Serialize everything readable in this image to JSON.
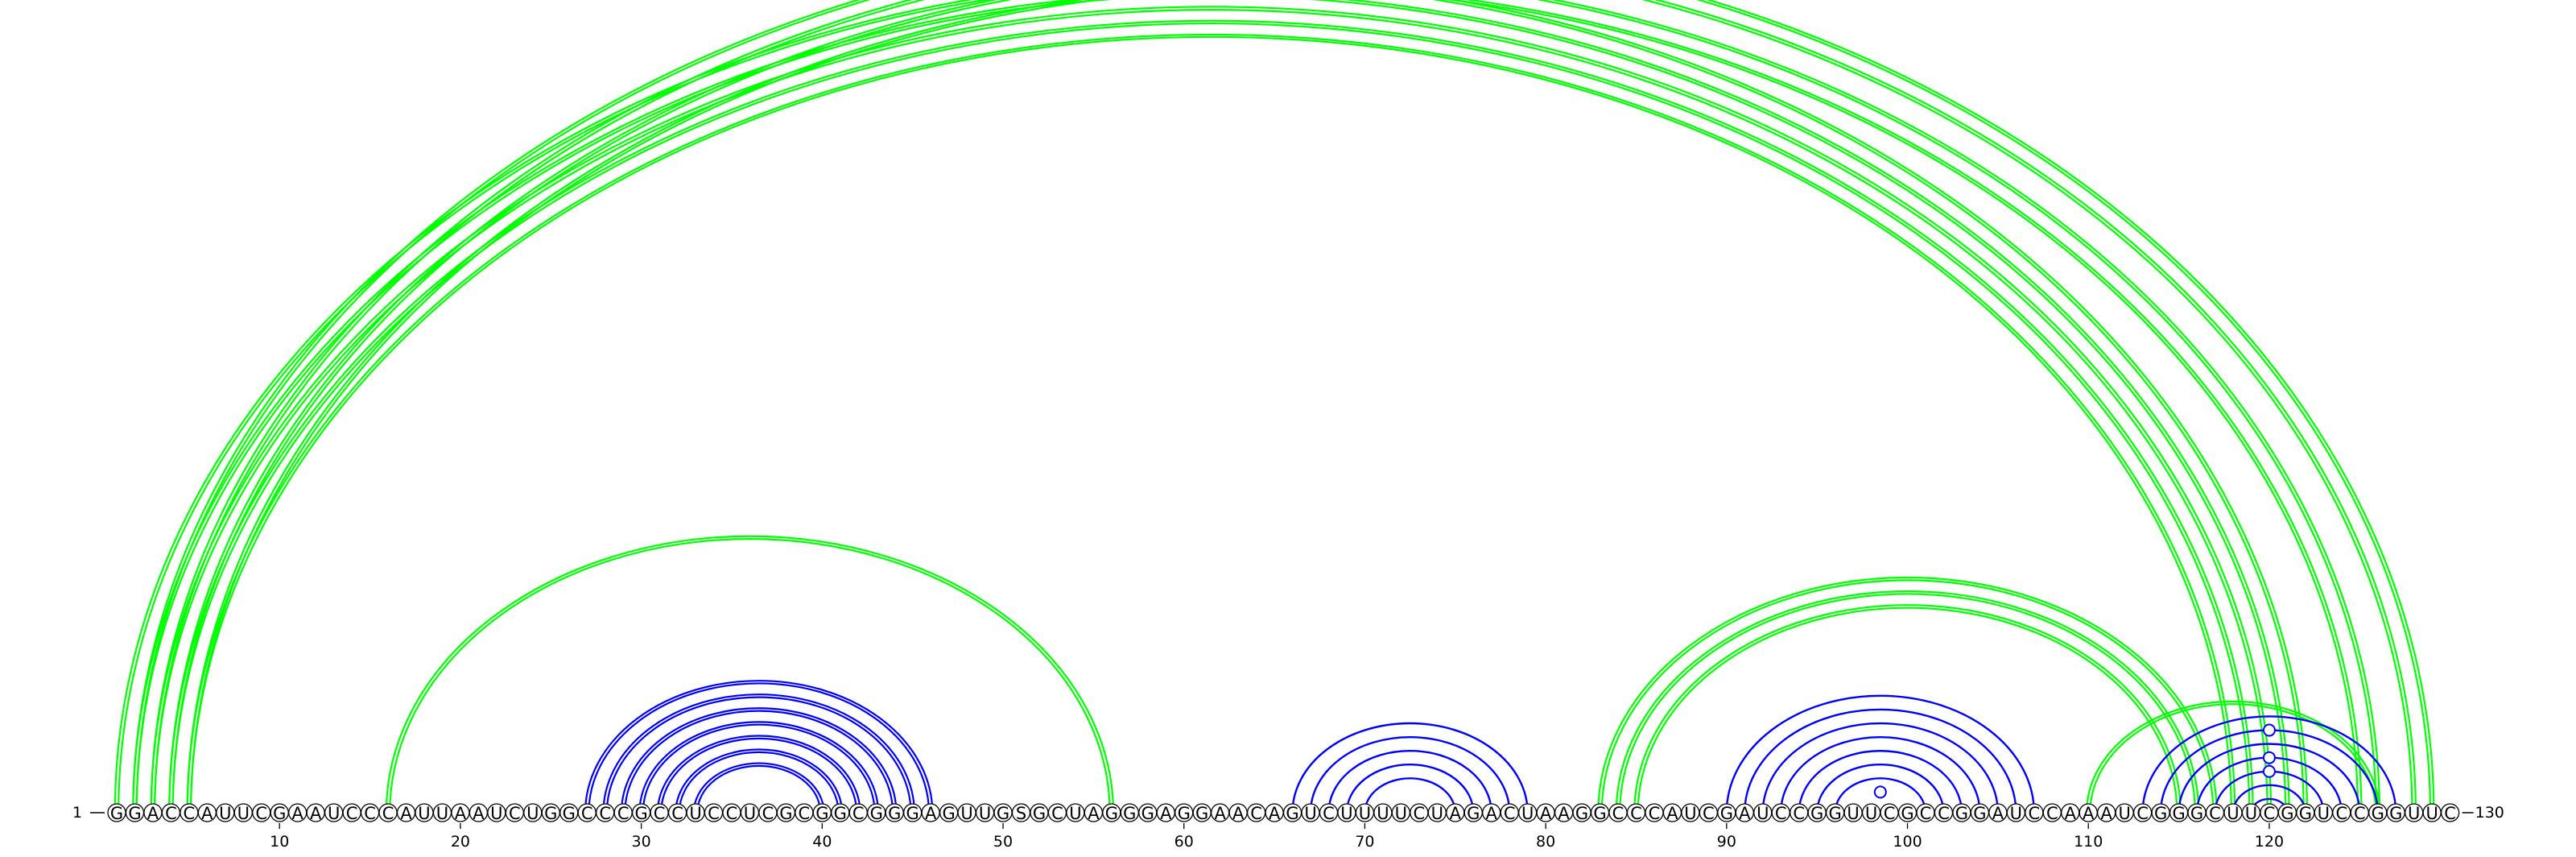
{
  "sequence": "GGACCAUUCGAAUCCCAUUAAUCUGGCCCGCCUCCUCGCGGCGGGAGUUGSGCUAGGGAGGAACAGUCUUUUCUAGACUAAGGCCCAUCGAUCCGGUUCGCCGGAUCCAAAUCGGGCUUCGGUCCGGUUC",
  "start_label": "1",
  "end_label": "130",
  "tick_labels": [
    "10",
    "20",
    "30",
    "40",
    "50",
    "60",
    "70",
    "80",
    "90",
    "100",
    "110",
    "120"
  ],
  "colors": {
    "nested_pairs": "#0000ff",
    "crossing_pairs": "#00ff00",
    "nucleotide_outline": "#000000"
  },
  "arcs": [
    {
      "i": 16,
      "j": 56,
      "group": "green",
      "lines": 2
    },
    {
      "i": 1,
      "j": 122,
      "group": "green",
      "lines": 2
    },
    {
      "i": 2,
      "j": 121,
      "group": "green",
      "lines": 2
    },
    {
      "i": 3,
      "j": 120,
      "group": "green",
      "lines": 2
    },
    {
      "i": 4,
      "j": 119,
      "group": "green",
      "lines": 2
    },
    {
      "i": 5,
      "j": 118,
      "group": "green",
      "lines": 2
    },
    {
      "i": 1,
      "j": 130,
      "group": "green",
      "lines": 2,
      "gu": true
    },
    {
      "i": 2,
      "j": 129,
      "group": "green",
      "lines": 2
    },
    {
      "i": 3,
      "j": 128,
      "group": "green",
      "lines": 2
    },
    {
      "i": 4,
      "j": 126,
      "group": "green",
      "lines": 2
    },
    {
      "i": 5,
      "j": 125,
      "group": "green",
      "lines": 2
    },
    {
      "i": 83,
      "j": 117,
      "group": "green",
      "lines": 2
    },
    {
      "i": 84,
      "j": 116,
      "group": "green",
      "lines": 2
    },
    {
      "i": 85,
      "j": 115,
      "group": "green",
      "lines": 2
    },
    {
      "i": 110,
      "j": 126,
      "group": "green",
      "lines": 2
    },
    {
      "i": 27,
      "j": 46,
      "group": "blue",
      "lines": 2
    },
    {
      "i": 28,
      "j": 45,
      "group": "blue",
      "lines": 2
    },
    {
      "i": 29,
      "j": 44,
      "group": "blue",
      "lines": 2
    },
    {
      "i": 30,
      "j": 43,
      "group": "blue",
      "lines": 2
    },
    {
      "i": 31,
      "j": 42,
      "group": "blue",
      "lines": 2
    },
    {
      "i": 32,
      "j": 41,
      "group": "blue",
      "lines": 2
    },
    {
      "i": 33,
      "j": 40,
      "group": "blue",
      "lines": 2
    },
    {
      "i": 66,
      "j": 79,
      "group": "blue",
      "lines": 1
    },
    {
      "i": 67,
      "j": 78,
      "group": "blue",
      "lines": 1
    },
    {
      "i": 68,
      "j": 77,
      "group": "blue",
      "lines": 1
    },
    {
      "i": 69,
      "j": 76,
      "group": "blue",
      "lines": 1
    },
    {
      "i": 70,
      "j": 75,
      "group": "blue",
      "lines": 1
    },
    {
      "i": 90,
      "j": 107,
      "group": "blue",
      "lines": 1
    },
    {
      "i": 91,
      "j": 106,
      "group": "blue",
      "lines": 1
    },
    {
      "i": 92,
      "j": 105,
      "group": "blue",
      "lines": 1
    },
    {
      "i": 93,
      "j": 104,
      "group": "blue",
      "lines": 1
    },
    {
      "i": 94,
      "j": 103,
      "group": "blue",
      "lines": 1
    },
    {
      "i": 95,
      "j": 102,
      "group": "blue",
      "lines": 1
    },
    {
      "i": 96,
      "j": 101,
      "group": "blue",
      "lines": 1
    },
    {
      "i": 97,
      "j": 100,
      "group": "blue",
      "lines": 1,
      "gu": true
    },
    {
      "i": 113,
      "j": 127,
      "group": "blue",
      "lines": 1
    },
    {
      "i": 114,
      "j": 126,
      "group": "blue",
      "lines": 1
    },
    {
      "i": 115,
      "j": 125,
      "group": "blue",
      "lines": 1
    },
    {
      "i": 116,
      "j": 124,
      "group": "blue",
      "lines": 1
    },
    {
      "i": 117,
      "j": 123,
      "group": "blue",
      "lines": 1
    },
    {
      "i": 118,
      "j": 122,
      "group": "blue",
      "lines": 1
    },
    {
      "i": 119,
      "j": 121,
      "group": "blue",
      "lines": 1
    },
    {
      "i": 114,
      "j": 126,
      "group": "blue",
      "lines": 1,
      "gu": true
    },
    {
      "i": 116,
      "j": 124,
      "group": "blue",
      "lines": 1,
      "gu": true
    },
    {
      "i": 117,
      "j": 123,
      "group": "blue",
      "lines": 1,
      "gu": true
    }
  ]
}
